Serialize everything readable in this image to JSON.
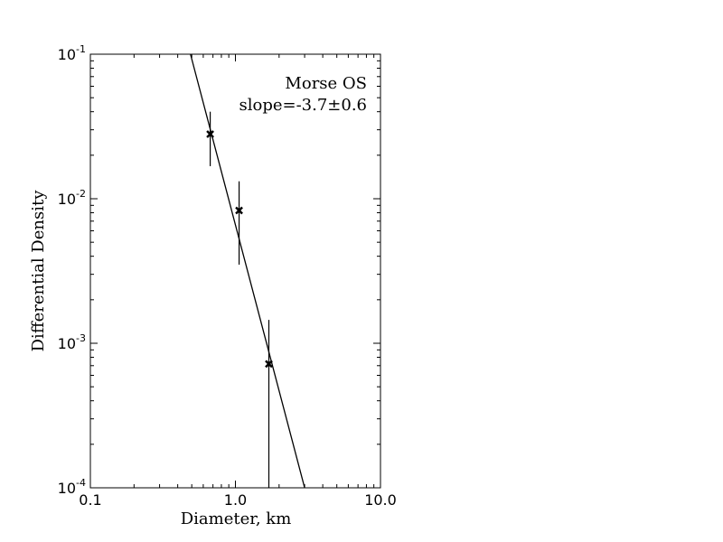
{
  "chart_data": {
    "type": "scatter",
    "xlabel": "Diameter, km",
    "ylabel": "Differential Density",
    "x_scale": "log",
    "y_scale": "log",
    "xlim": [
      0.1,
      10.0
    ],
    "ylim": [
      0.0001,
      0.1
    ],
    "x_tick_labels": [
      {
        "value": 0.1,
        "label": "0.1"
      },
      {
        "value": 1.0,
        "label": "1.0"
      },
      {
        "value": 10.0,
        "label": "10.0"
      }
    ],
    "y_tick_labels": [
      {
        "value": 0.0001,
        "base": "10",
        "exp": "-4"
      },
      {
        "value": 0.001,
        "base": "10",
        "exp": "-3"
      },
      {
        "value": 0.01,
        "base": "10",
        "exp": "-2"
      },
      {
        "value": 0.1,
        "base": "10",
        "exp": "-1"
      }
    ],
    "points": [
      {
        "x": 0.67,
        "y": 0.028,
        "y_low": 0.0168,
        "y_high": 0.04
      },
      {
        "x": 1.06,
        "y": 0.0083,
        "y_low": 0.0035,
        "y_high": 0.0132
      },
      {
        "x": 1.7,
        "y": 0.00072,
        "y_low": 0.0001,
        "y_high": 0.00145
      }
    ],
    "fit_line": {
      "slope": -3.7,
      "points": [
        {
          "x": 0.49,
          "y": 0.1
        },
        {
          "x": 3.0,
          "y": 0.0001
        }
      ]
    },
    "annotations": {
      "line1": "Morse OS",
      "line2": "slope=-3.7±0.6"
    },
    "grid": false,
    "marker": "x",
    "color": "#000000"
  }
}
